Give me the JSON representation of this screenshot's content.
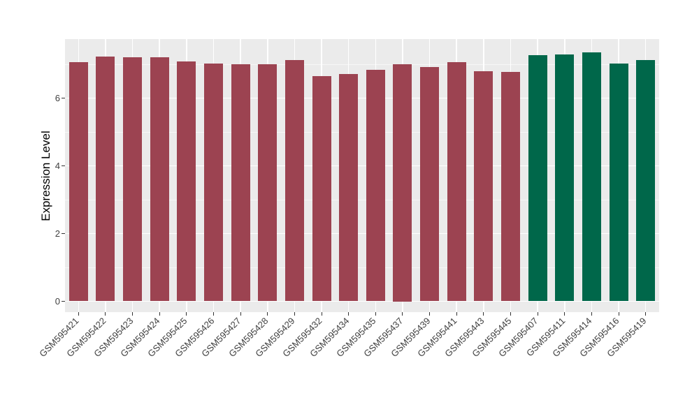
{
  "chart_data": {
    "type": "bar",
    "title": "",
    "ylabel": "Expression Level",
    "xlabel": "",
    "categories": [
      "GSM595421",
      "GSM595422",
      "GSM595423",
      "GSM595424",
      "GSM595425",
      "GSM595426",
      "GSM595427",
      "GSM595428",
      "GSM595429",
      "GSM595432",
      "GSM595434",
      "GSM595435",
      "GSM595437",
      "GSM595439",
      "GSM595441",
      "GSM595443",
      "GSM595445",
      "GSM595407",
      "GSM595411",
      "GSM595414",
      "GSM595416",
      "GSM595419"
    ],
    "values": [
      7.06,
      7.22,
      7.2,
      7.2,
      7.08,
      7.02,
      7.01,
      6.99,
      7.12,
      6.64,
      6.72,
      6.84,
      7.0,
      6.92,
      7.06,
      6.8,
      6.77,
      7.27,
      7.28,
      7.36,
      7.02,
      7.13
    ],
    "groups": [
      "group1",
      "group1",
      "group1",
      "group1",
      "group1",
      "group1",
      "group1",
      "group1",
      "group1",
      "group1",
      "group1",
      "group1",
      "group1",
      "group1",
      "group1",
      "group1",
      "group1",
      "group2",
      "group2",
      "group2",
      "group2",
      "group2"
    ],
    "group_colors": {
      "group1": "#9C4351",
      "group2": "#00674A"
    },
    "yticks": [
      0,
      2,
      4,
      6
    ],
    "yticks_minor": [
      1,
      3,
      5,
      7
    ],
    "ylim": [
      0,
      7.75
    ],
    "x_label_angle_deg": 45,
    "legend_position": "none",
    "grid": true,
    "panel_bg": "#EBEBEB",
    "grid_major_color": "#FFFFFF",
    "grid_minor_color": "rgba(255,255,255,0.6)",
    "tick_color": "#333333",
    "axis_text_color": "#404040"
  }
}
